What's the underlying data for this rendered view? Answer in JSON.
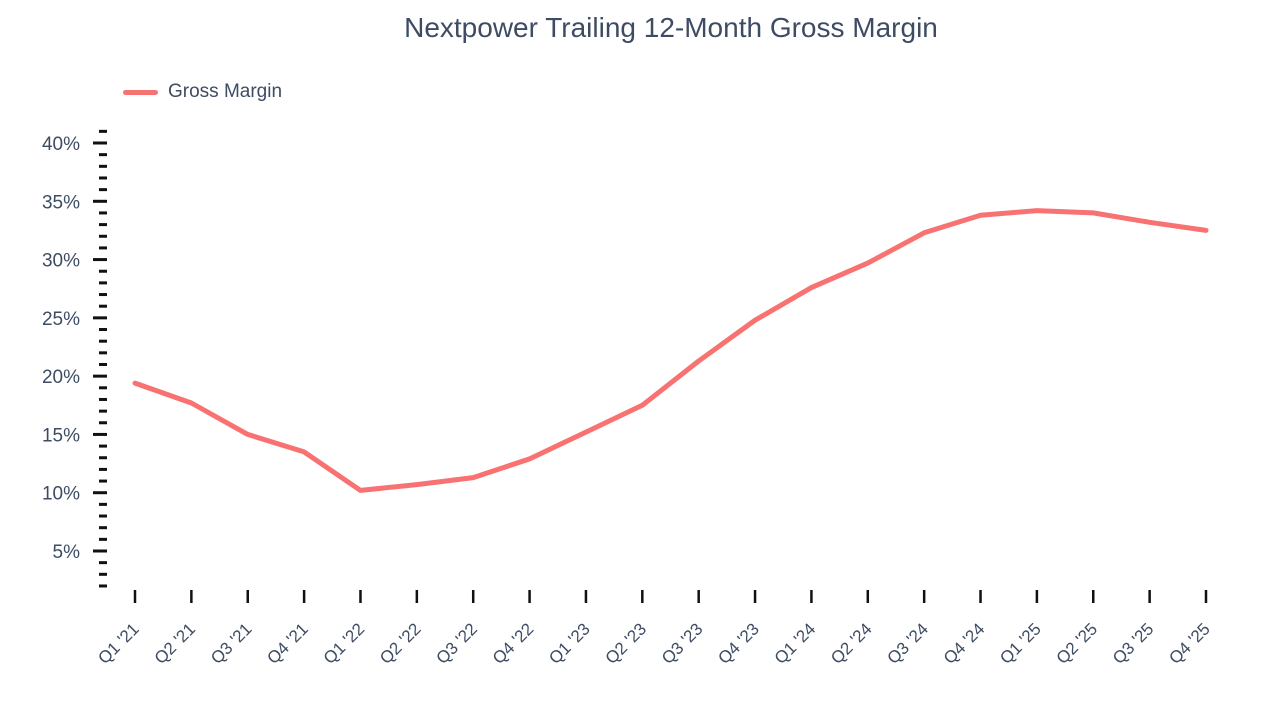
{
  "title": "Nextpower Trailing 12-Month Gross Margin",
  "legend": {
    "items": [
      {
        "label": "Gross Margin",
        "color": "#F87272"
      }
    ]
  },
  "colors": {
    "line": "#F87272",
    "text": "#3E4C63",
    "tick": "#111111",
    "background": "#FFFFFF"
  },
  "chart_data": {
    "type": "line",
    "title": "Nextpower Trailing 12-Month Gross Margin",
    "xlabel": "",
    "ylabel": "",
    "categories": [
      "Q1 '21",
      "Q2 '21",
      "Q3 '21",
      "Q4 '21",
      "Q1 '22",
      "Q2 '22",
      "Q3 '22",
      "Q4 '22",
      "Q1 '23",
      "Q2 '23",
      "Q3 '23",
      "Q4 '23",
      "Q1 '24",
      "Q2 '24",
      "Q3 '24",
      "Q4 '24",
      "Q1 '25",
      "Q2 '25",
      "Q3 '25",
      "Q4 '25"
    ],
    "series": [
      {
        "name": "Gross Margin",
        "values": [
          19.4,
          17.7,
          15.0,
          13.5,
          10.2,
          10.7,
          11.3,
          12.9,
          15.2,
          17.5,
          21.3,
          24.8,
          27.6,
          29.7,
          32.3,
          33.8,
          34.2,
          34.0,
          33.2,
          32.5
        ]
      }
    ],
    "y_major_ticks": [
      5,
      10,
      15,
      20,
      25,
      30,
      35,
      40
    ],
    "y_minor_step": 1,
    "y_minor_range": [
      2,
      41
    ],
    "y_tick_format": "percent",
    "ylim": [
      0,
      43
    ],
    "grid": false,
    "legend_position": "top-left"
  }
}
